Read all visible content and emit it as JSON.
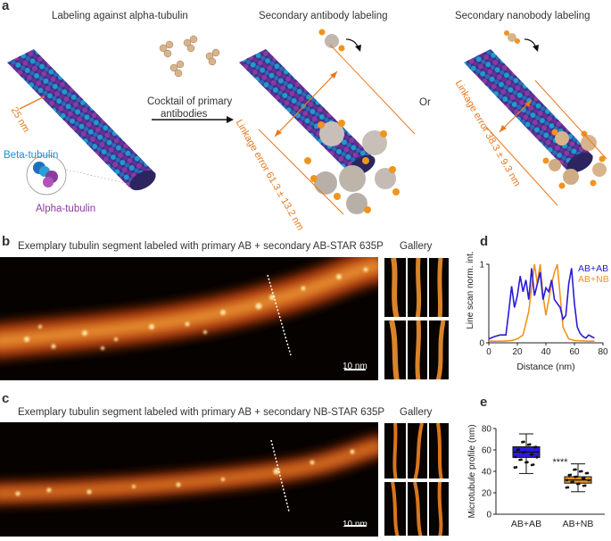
{
  "panel_a": {
    "letter": "a",
    "title_left": "Labeling against alpha-tubulin",
    "title_mid": "Secondary antibody labeling",
    "title_right": "Secondary nanobody labeling",
    "cocktail_line1": "Cocktail of primary",
    "cocktail_line2": "antibodies",
    "or_text": "Or",
    "diameter_label": "25 nm",
    "beta_label": "Beta-tubulin",
    "alpha_label": "Alpha-tubulin",
    "linkage_ab": "Linkage error 61.3 ± 13.2 nm",
    "linkage_nb": "Linkage error 38.3 ± 9.3 nm"
  },
  "panel_b": {
    "letter": "b",
    "caption": "Exemplary tubulin segment labeled with primary AB + secondary AB-STAR 635P",
    "gallery": "Gallery",
    "scale": "10 nm"
  },
  "panel_c": {
    "letter": "c",
    "caption": "Exemplary tubulin segment labeled with primary AB + secondary NB-STAR 635P",
    "gallery": "Gallery",
    "scale": "10 nm"
  },
  "colors": {
    "ab": "#2a1ad8",
    "nb": "#f0941e",
    "orange_text": "#e8781e"
  },
  "chart_data": [
    {
      "panel": "d",
      "type": "line",
      "ylabel": "Line scan norm. int.",
      "xlabel": "Distance (nm)",
      "xlim": [
        0,
        80
      ],
      "ylim": [
        0,
        1
      ],
      "xticks": [
        "0",
        "20",
        "40",
        "60",
        "80"
      ],
      "yticks": [
        "0",
        "1"
      ],
      "series": [
        {
          "name": "AB+AB",
          "x": [
            0,
            4,
            8,
            12,
            14,
            16,
            18,
            20,
            22,
            24,
            26,
            28,
            30,
            32,
            34,
            36,
            38,
            40,
            42,
            44,
            46,
            48,
            50,
            52,
            54,
            56,
            58,
            60,
            62,
            64,
            66,
            68,
            70,
            72,
            74
          ],
          "y": [
            0.05,
            0.08,
            0.1,
            0.1,
            0.4,
            0.72,
            0.45,
            0.6,
            0.85,
            0.65,
            0.8,
            0.55,
            0.95,
            0.6,
            0.75,
            0.9,
            0.55,
            0.7,
            0.65,
            0.8,
            0.55,
            0.5,
            0.45,
            0.3,
            0.35,
            0.75,
            0.95,
            0.5,
            0.2,
            0.12,
            0.08,
            0.06,
            0.1,
            0.08,
            0.06
          ]
        },
        {
          "name": "AB+NB",
          "x": [
            0,
            10,
            16,
            20,
            24,
            28,
            30,
            32,
            34,
            36,
            38,
            40,
            42,
            44,
            46,
            48,
            50,
            52,
            56,
            60,
            70,
            74
          ],
          "y": [
            0.02,
            0.02,
            0.03,
            0.05,
            0.1,
            0.4,
            0.7,
            1.0,
            0.75,
            1.0,
            0.6,
            0.35,
            0.55,
            0.75,
            0.9,
            1.0,
            0.6,
            0.2,
            0.05,
            0.03,
            0.02,
            0.02
          ]
        }
      ]
    },
    {
      "panel": "e",
      "type": "box",
      "ylabel": "Microtubule profile (nm)",
      "ylim": [
        0,
        80
      ],
      "yticks": [
        "0",
        "20",
        "40",
        "60",
        "80"
      ],
      "categories": [
        "AB+AB",
        "AB+NB"
      ],
      "boxes": [
        {
          "name": "AB+AB",
          "min": 38,
          "q1": 53,
          "median": 58,
          "q3": 63,
          "max": 75
        },
        {
          "name": "AB+NB",
          "min": 21,
          "q1": 29,
          "median": 32,
          "q3": 35,
          "max": 47
        }
      ],
      "annotation": "****"
    }
  ]
}
